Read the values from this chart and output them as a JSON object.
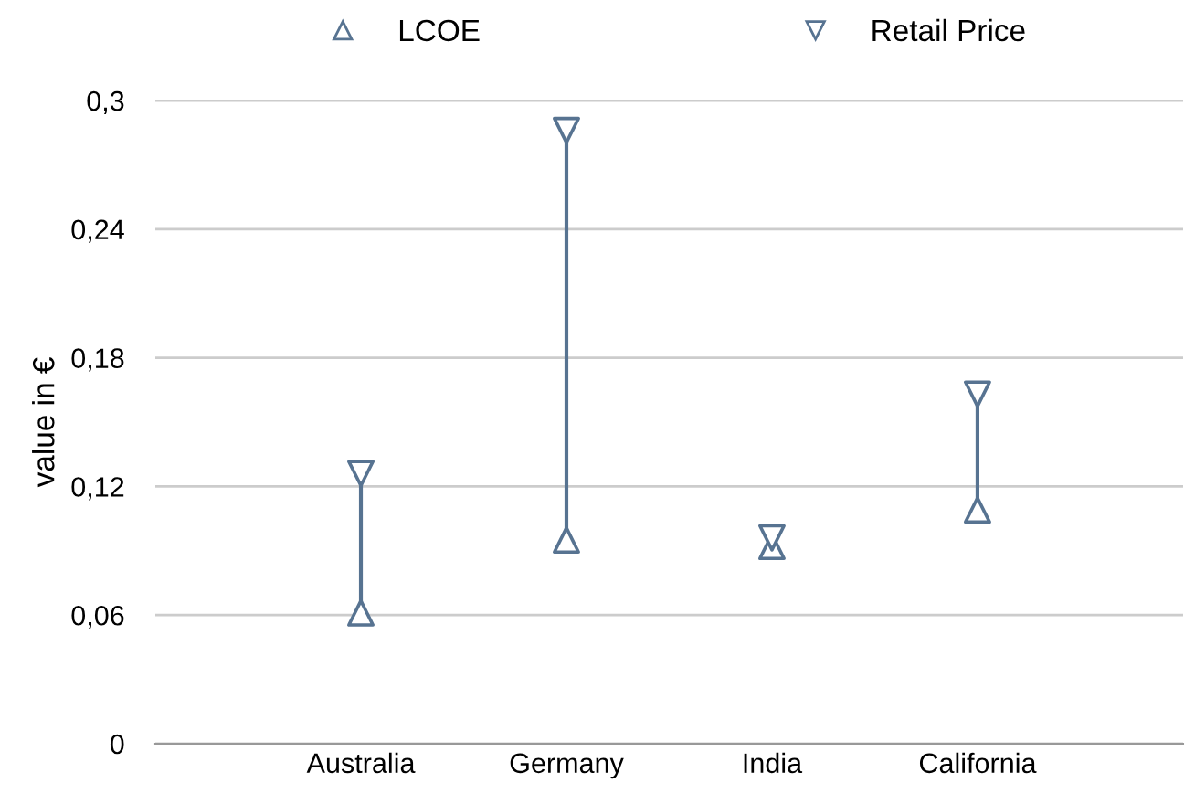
{
  "chart_data": {
    "type": "scatter",
    "ylabel": "value in €",
    "categories": [
      "Australia",
      "Germany",
      "India",
      "California"
    ],
    "series": [
      {
        "name": "LCOE",
        "color": "#577391",
        "marker": "triangle",
        "values": [
          0.061,
          0.095,
          0.092,
          0.109
        ]
      },
      {
        "name": "Retail Price",
        "color": "#577391",
        "marker": "triangle_down",
        "values": [
          0.126,
          0.286,
          0.096,
          0.163
        ]
      }
    ],
    "ylim": [
      0,
      0.3
    ],
    "yticks": [
      0,
      {
        "value": 0.06,
        "label": "0,06"
      },
      {
        "value": 0.12,
        "label": "0,12"
      },
      {
        "value": 0.18,
        "label": "0,18"
      },
      {
        "value": 0.24,
        "label": "0,24"
      },
      {
        "value": 0.3,
        "label": "0,3"
      }
    ],
    "grid": "y",
    "legend": "top"
  }
}
